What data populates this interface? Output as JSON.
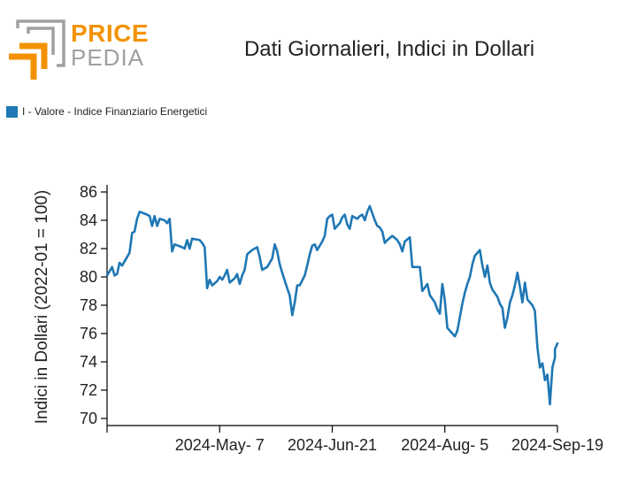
{
  "brand": {
    "name_top": "PRICE",
    "name_bottom": "PEDIA",
    "accent_color": "#f39200",
    "secondary_color": "#a0a0a0"
  },
  "chart_data": {
    "type": "line",
    "title": "Dati Giornalieri, Indici in Dollari",
    "xlabel": "",
    "ylabel": "Indici in Dollari (2022-01 = 100)",
    "ylim": [
      69.5,
      86.5
    ],
    "yticks": [
      70,
      72,
      74,
      76,
      78,
      80,
      82,
      84,
      86
    ],
    "xlim": [
      "2024-03-23",
      "2024-09-19"
    ],
    "xticks": [
      {
        "date": "2024-03-23",
        "label": ""
      },
      {
        "date": "2024-05-07",
        "label": "2024-May- 7"
      },
      {
        "date": "2024-06-21",
        "label": "2024-Jun-21"
      },
      {
        "date": "2024-08-05",
        "label": "2024-Aug- 5"
      },
      {
        "date": "2024-09-19",
        "label": "2024-Sep-19"
      }
    ],
    "grid": false,
    "legend_position": "top-left",
    "series": [
      {
        "name": "I - Valore - Indice Finanziario Energetici",
        "color": "#1f77b4",
        "points": [
          [
            "2024-03-23",
            80.1
          ],
          [
            "2024-03-25",
            80.7
          ],
          [
            "2024-03-26",
            80.1
          ],
          [
            "2024-03-27",
            80.2
          ],
          [
            "2024-03-28",
            81.0
          ],
          [
            "2024-03-29",
            80.8
          ],
          [
            "2024-04-01",
            81.7
          ],
          [
            "2024-04-02",
            83.1
          ],
          [
            "2024-04-03",
            83.2
          ],
          [
            "2024-04-04",
            84.1
          ],
          [
            "2024-04-05",
            84.6
          ],
          [
            "2024-04-08",
            84.4
          ],
          [
            "2024-04-09",
            84.3
          ],
          [
            "2024-04-10",
            83.6
          ],
          [
            "2024-04-11",
            84.3
          ],
          [
            "2024-04-12",
            83.6
          ],
          [
            "2024-04-13",
            84.1
          ],
          [
            "2024-04-15",
            84.0
          ],
          [
            "2024-04-16",
            83.8
          ],
          [
            "2024-04-17",
            84.1
          ],
          [
            "2024-04-18",
            81.8
          ],
          [
            "2024-04-19",
            82.3
          ],
          [
            "2024-04-22",
            82.1
          ],
          [
            "2024-04-23",
            82.0
          ],
          [
            "2024-04-24",
            82.6
          ],
          [
            "2024-04-25",
            82.0
          ],
          [
            "2024-04-26",
            82.7
          ],
          [
            "2024-04-29",
            82.6
          ],
          [
            "2024-04-30",
            82.4
          ],
          [
            "2024-05-01",
            82.1
          ],
          [
            "2024-05-02",
            79.2
          ],
          [
            "2024-05-03",
            79.8
          ],
          [
            "2024-05-04",
            79.4
          ],
          [
            "2024-05-06",
            79.7
          ],
          [
            "2024-05-07",
            80.0
          ],
          [
            "2024-05-08",
            79.8
          ],
          [
            "2024-05-09",
            80.1
          ],
          [
            "2024-05-10",
            80.5
          ],
          [
            "2024-05-11",
            79.6
          ],
          [
            "2024-05-13",
            79.9
          ],
          [
            "2024-05-14",
            80.2
          ],
          [
            "2024-05-15",
            79.5
          ],
          [
            "2024-05-16",
            80.1
          ],
          [
            "2024-05-17",
            80.5
          ],
          [
            "2024-05-18",
            81.6
          ],
          [
            "2024-05-20",
            81.9
          ],
          [
            "2024-05-22",
            82.1
          ],
          [
            "2024-05-23",
            81.4
          ],
          [
            "2024-05-24",
            80.5
          ],
          [
            "2024-05-26",
            80.7
          ],
          [
            "2024-05-27",
            81.0
          ],
          [
            "2024-05-28",
            81.3
          ],
          [
            "2024-05-29",
            82.3
          ],
          [
            "2024-05-30",
            81.8
          ],
          [
            "2024-05-31",
            80.9
          ],
          [
            "2024-06-01",
            80.3
          ],
          [
            "2024-06-03",
            79.2
          ],
          [
            "2024-06-04",
            78.7
          ],
          [
            "2024-06-05",
            77.3
          ],
          [
            "2024-06-06",
            78.2
          ],
          [
            "2024-06-07",
            79.4
          ],
          [
            "2024-06-08",
            79.4
          ],
          [
            "2024-06-10",
            80.1
          ],
          [
            "2024-06-11",
            80.8
          ],
          [
            "2024-06-12",
            81.6
          ],
          [
            "2024-06-13",
            82.2
          ],
          [
            "2024-06-14",
            82.3
          ],
          [
            "2024-06-15",
            81.9
          ],
          [
            "2024-06-17",
            82.5
          ],
          [
            "2024-06-18",
            82.9
          ],
          [
            "2024-06-19",
            84.1
          ],
          [
            "2024-06-20",
            84.3
          ],
          [
            "2024-06-21",
            84.4
          ],
          [
            "2024-06-22",
            83.4
          ],
          [
            "2024-06-24",
            83.8
          ],
          [
            "2024-06-25",
            84.2
          ],
          [
            "2024-06-26",
            84.4
          ],
          [
            "2024-06-27",
            83.7
          ],
          [
            "2024-06-28",
            83.4
          ],
          [
            "2024-06-29",
            84.3
          ],
          [
            "2024-07-01",
            84.1
          ],
          [
            "2024-07-02",
            84.3
          ],
          [
            "2024-07-03",
            84.4
          ],
          [
            "2024-07-04",
            84.0
          ],
          [
            "2024-07-05",
            84.6
          ],
          [
            "2024-07-06",
            85.0
          ],
          [
            "2024-07-08",
            84.0
          ],
          [
            "2024-07-09",
            83.6
          ],
          [
            "2024-07-10",
            83.5
          ],
          [
            "2024-07-11",
            83.2
          ],
          [
            "2024-07-12",
            82.4
          ],
          [
            "2024-07-13",
            82.6
          ],
          [
            "2024-07-15",
            82.9
          ],
          [
            "2024-07-17",
            82.6
          ],
          [
            "2024-07-18",
            82.3
          ],
          [
            "2024-07-19",
            81.8
          ],
          [
            "2024-07-20",
            82.5
          ],
          [
            "2024-07-22",
            82.8
          ],
          [
            "2024-07-23",
            80.7
          ],
          [
            "2024-07-25",
            80.7
          ],
          [
            "2024-07-26",
            80.7
          ],
          [
            "2024-07-27",
            79.0
          ],
          [
            "2024-07-29",
            79.5
          ],
          [
            "2024-07-30",
            78.7
          ],
          [
            "2024-08-01",
            78.2
          ],
          [
            "2024-08-02",
            77.7
          ],
          [
            "2024-08-03",
            77.4
          ],
          [
            "2024-08-04",
            79.5
          ],
          [
            "2024-08-05",
            78.3
          ],
          [
            "2024-08-06",
            76.4
          ],
          [
            "2024-08-08",
            76.0
          ],
          [
            "2024-08-09",
            75.8
          ],
          [
            "2024-08-10",
            76.2
          ],
          [
            "2024-08-12",
            78.1
          ],
          [
            "2024-08-13",
            78.9
          ],
          [
            "2024-08-14",
            79.5
          ],
          [
            "2024-08-15",
            80.0
          ],
          [
            "2024-08-16",
            80.9
          ],
          [
            "2024-08-17",
            81.5
          ],
          [
            "2024-08-19",
            81.9
          ],
          [
            "2024-08-20",
            80.8
          ],
          [
            "2024-08-21",
            80.0
          ],
          [
            "2024-08-22",
            80.8
          ],
          [
            "2024-08-23",
            79.6
          ],
          [
            "2024-08-24",
            79.1
          ],
          [
            "2024-08-26",
            78.6
          ],
          [
            "2024-08-27",
            78.1
          ],
          [
            "2024-08-28",
            77.8
          ],
          [
            "2024-08-29",
            76.4
          ],
          [
            "2024-08-30",
            77.1
          ],
          [
            "2024-08-31",
            78.2
          ],
          [
            "2024-09-01",
            78.7
          ],
          [
            "2024-09-02",
            79.4
          ],
          [
            "2024-09-03",
            80.3
          ],
          [
            "2024-09-04",
            79.3
          ],
          [
            "2024-09-05",
            78.2
          ],
          [
            "2024-09-06",
            79.6
          ],
          [
            "2024-09-07",
            78.4
          ],
          [
            "2024-09-09",
            78.0
          ],
          [
            "2024-09-10",
            77.6
          ],
          [
            "2024-09-11",
            75.0
          ],
          [
            "2024-09-12",
            73.6
          ],
          [
            "2024-09-13",
            73.9
          ],
          [
            "2024-09-14",
            72.7
          ],
          [
            "2024-09-15",
            73.1
          ],
          [
            "2024-09-16",
            71.0
          ],
          [
            "2024-09-17",
            73.6
          ],
          [
            "2024-09-18",
            74.3
          ],
          [
            "2024-09-18",
            74.9
          ],
          [
            "2024-09-19",
            75.3
          ]
        ]
      }
    ]
  }
}
